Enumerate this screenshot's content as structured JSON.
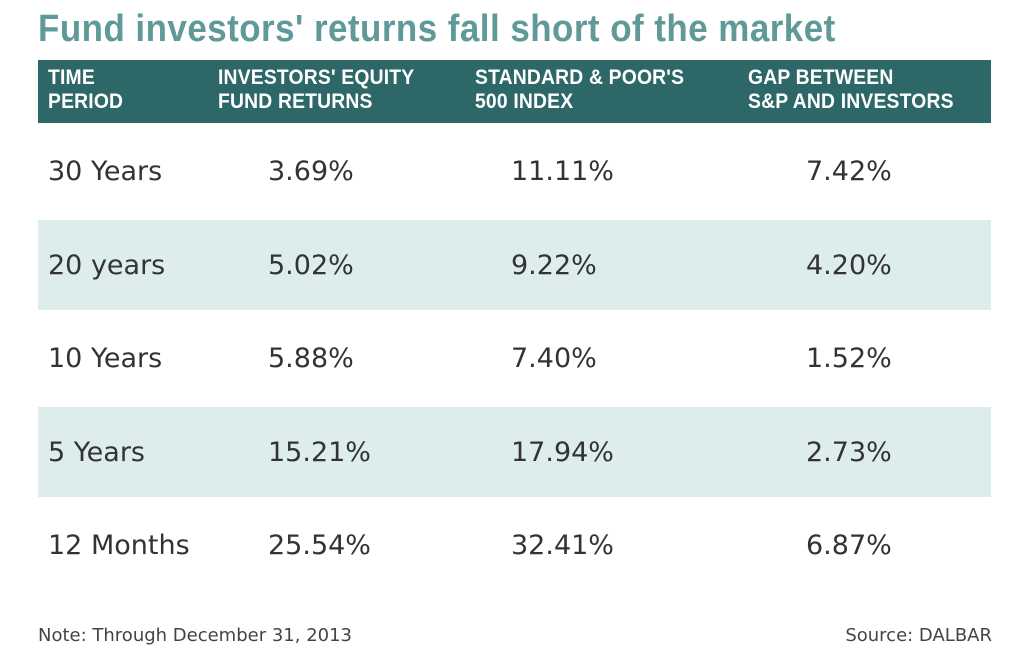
{
  "chart_data": {
    "type": "table",
    "title": "Fund investors' returns  fall short of the market",
    "columns": [
      {
        "line1": "TIME",
        "line2": "PERIOD"
      },
      {
        "line1": "INVESTORS' EQUITY",
        "line2": "FUND RETURNS"
      },
      {
        "line1": "STANDARD & POOR'S",
        "line2": "500 INDEX"
      },
      {
        "line1": "GAP BETWEEN",
        "line2": "S&P AND INVESTORS"
      }
    ],
    "rows": [
      {
        "period": "30 Years",
        "investors": "3.69%",
        "sp500": "11.11%",
        "gap": "7.42%"
      },
      {
        "period": "20 years",
        "investors": "5.02%",
        "sp500": "9.22%",
        "gap": "4.20%"
      },
      {
        "period": "10 Years",
        "investors": "5.88%",
        "sp500": "7.40%",
        "gap": "1.52%"
      },
      {
        "period": "5 Years",
        "investors": "15.21%",
        "sp500": "17.94%",
        "gap": "2.73%"
      },
      {
        "period": "12 Months",
        "investors": "25.54%",
        "sp500": "32.41%",
        "gap": "6.87%"
      }
    ],
    "note": "Note: Through December 31, 2013",
    "source": "Source: DALBAR"
  },
  "colors": {
    "title": "#5f9a98",
    "header_bg": "#2e6768",
    "header_text": "#ffffff",
    "row_shade": "#ddedec",
    "body_text": "#333333"
  }
}
